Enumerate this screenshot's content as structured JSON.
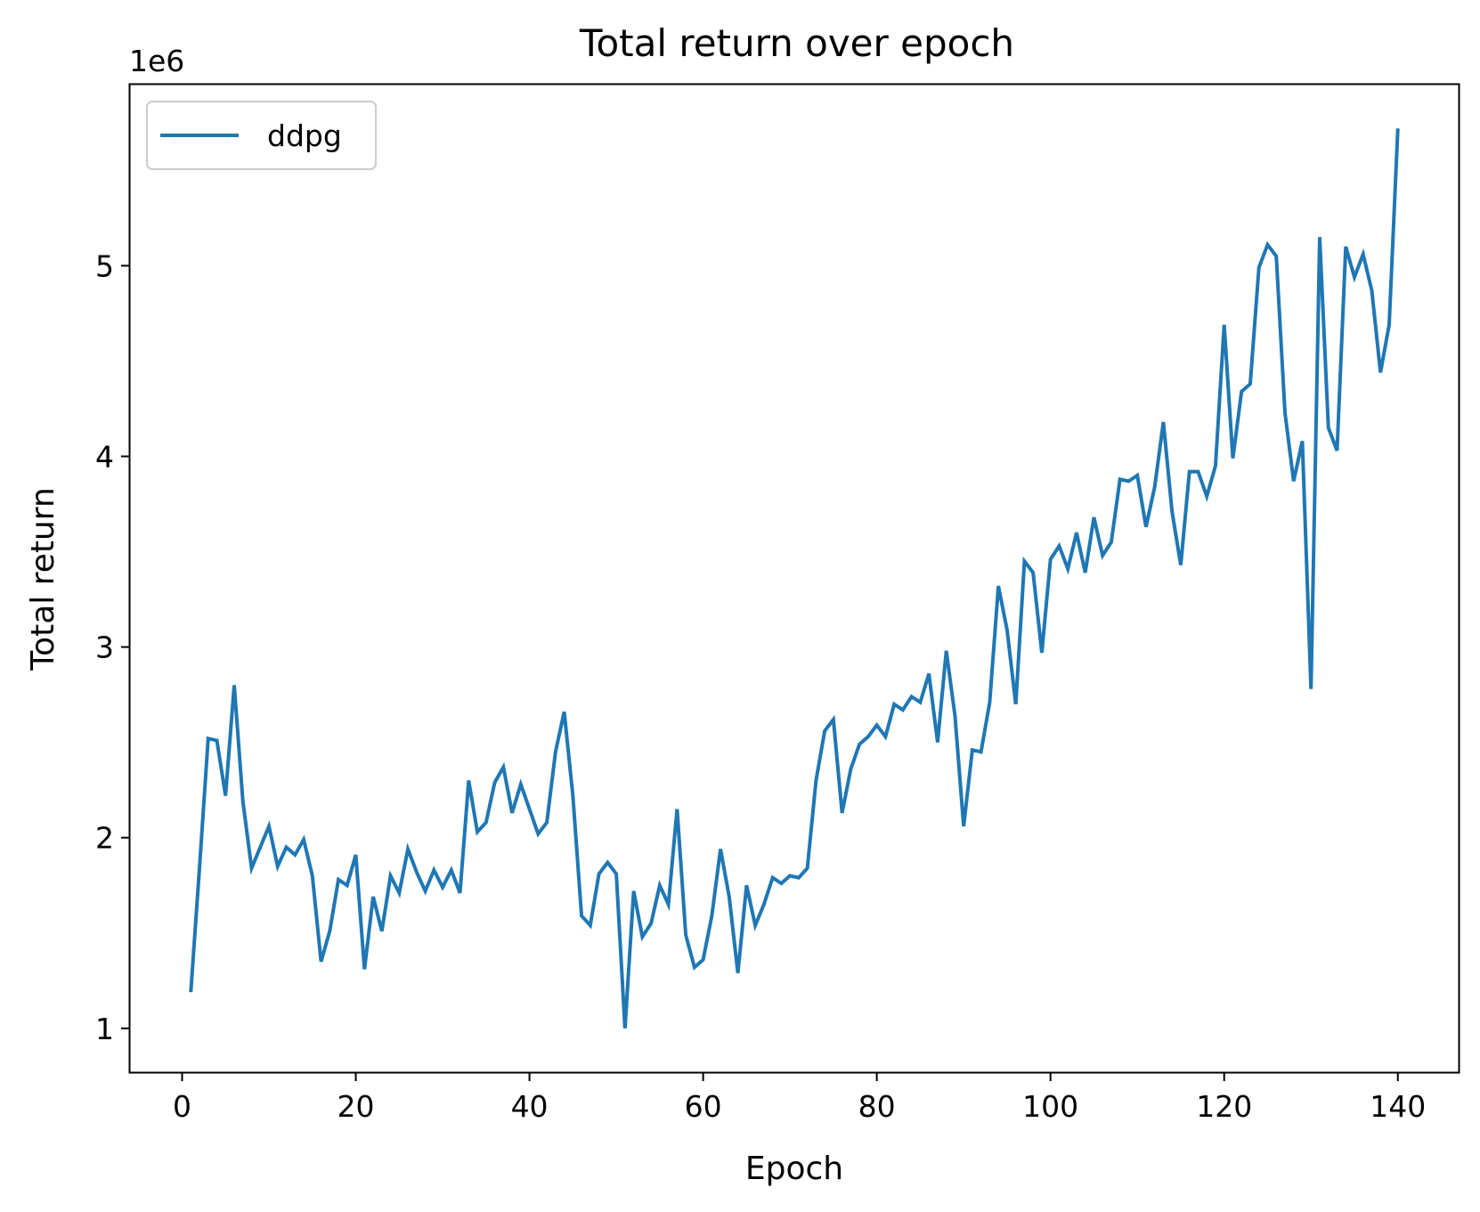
{
  "chart_data": {
    "type": "line",
    "title": "Total return over epoch",
    "xlabel": "Epoch",
    "ylabel": "Total return",
    "y_offset_label": "1e6",
    "xlim": [
      -6,
      147
    ],
    "ylim": [
      0.77,
      5.95
    ],
    "x_ticks": [
      0,
      20,
      40,
      60,
      80,
      100,
      120,
      140
    ],
    "y_ticks": [
      1,
      2,
      3,
      4,
      5
    ],
    "grid": false,
    "legend_position": "upper-left",
    "series": [
      {
        "name": "ddpg",
        "color": "#1f77b4",
        "x": [
          1,
          2,
          3,
          4,
          5,
          6,
          7,
          8,
          9,
          10,
          11,
          12,
          13,
          14,
          15,
          16,
          17,
          18,
          19,
          20,
          21,
          22,
          23,
          24,
          25,
          26,
          27,
          28,
          29,
          30,
          31,
          32,
          33,
          34,
          35,
          36,
          37,
          38,
          39,
          40,
          41,
          42,
          43,
          44,
          45,
          46,
          47,
          48,
          49,
          50,
          51,
          52,
          53,
          54,
          55,
          56,
          57,
          58,
          59,
          60,
          61,
          62,
          63,
          64,
          65,
          66,
          67,
          68,
          69,
          70,
          71,
          72,
          73,
          74,
          75,
          76,
          77,
          78,
          79,
          80,
          81,
          82,
          83,
          84,
          85,
          86,
          87,
          88,
          89,
          90,
          91,
          92,
          93,
          94,
          95,
          96,
          97,
          98,
          99,
          100,
          101,
          102,
          103,
          104,
          105,
          106,
          107,
          108,
          109,
          110,
          111,
          112,
          113,
          114,
          115,
          116,
          117,
          118,
          119,
          120,
          121,
          122,
          123,
          124,
          125,
          126,
          127,
          128,
          129,
          130,
          131,
          132,
          133,
          134,
          135,
          136,
          137,
          138,
          139,
          140
        ],
        "values": [
          1.19,
          1.84,
          2.52,
          2.51,
          2.22,
          2.8,
          2.19,
          1.84,
          1.95,
          2.06,
          1.85,
          1.95,
          1.91,
          1.99,
          1.8,
          1.35,
          1.51,
          1.78,
          1.75,
          1.91,
          1.31,
          1.69,
          1.51,
          1.8,
          1.71,
          1.94,
          1.82,
          1.72,
          1.83,
          1.74,
          1.83,
          1.71,
          2.3,
          2.03,
          2.08,
          2.29,
          2.37,
          2.13,
          2.28,
          2.15,
          2.02,
          2.08,
          2.45,
          2.66,
          2.22,
          1.59,
          1.54,
          1.81,
          1.87,
          1.81,
          1.0,
          1.72,
          1.48,
          1.55,
          1.75,
          1.65,
          2.15,
          1.49,
          1.32,
          1.36,
          1.59,
          1.94,
          1.69,
          1.29,
          1.75,
          1.54,
          1.65,
          1.79,
          1.76,
          1.8,
          1.79,
          1.84,
          2.3,
          2.56,
          2.62,
          2.13,
          2.36,
          2.49,
          2.53,
          2.59,
          2.53,
          2.7,
          2.67,
          2.74,
          2.71,
          2.86,
          2.5,
          2.98,
          2.64,
          2.06,
          2.46,
          2.45,
          2.71,
          3.32,
          3.09,
          2.7,
          3.45,
          3.39,
          2.97,
          3.46,
          3.53,
          3.41,
          3.6,
          3.39,
          3.68,
          3.48,
          3.55,
          3.88,
          3.87,
          3.9,
          3.63,
          3.84,
          4.18,
          3.71,
          3.43,
          3.92,
          3.92,
          3.79,
          3.95,
          4.69,
          3.99,
          4.34,
          4.38,
          4.99,
          5.11,
          5.05,
          4.23,
          3.87,
          4.08,
          2.78,
          5.15,
          4.15,
          4.03,
          5.1,
          4.94,
          5.06,
          4.87,
          4.44,
          4.69,
          5.72
        ]
      }
    ]
  }
}
